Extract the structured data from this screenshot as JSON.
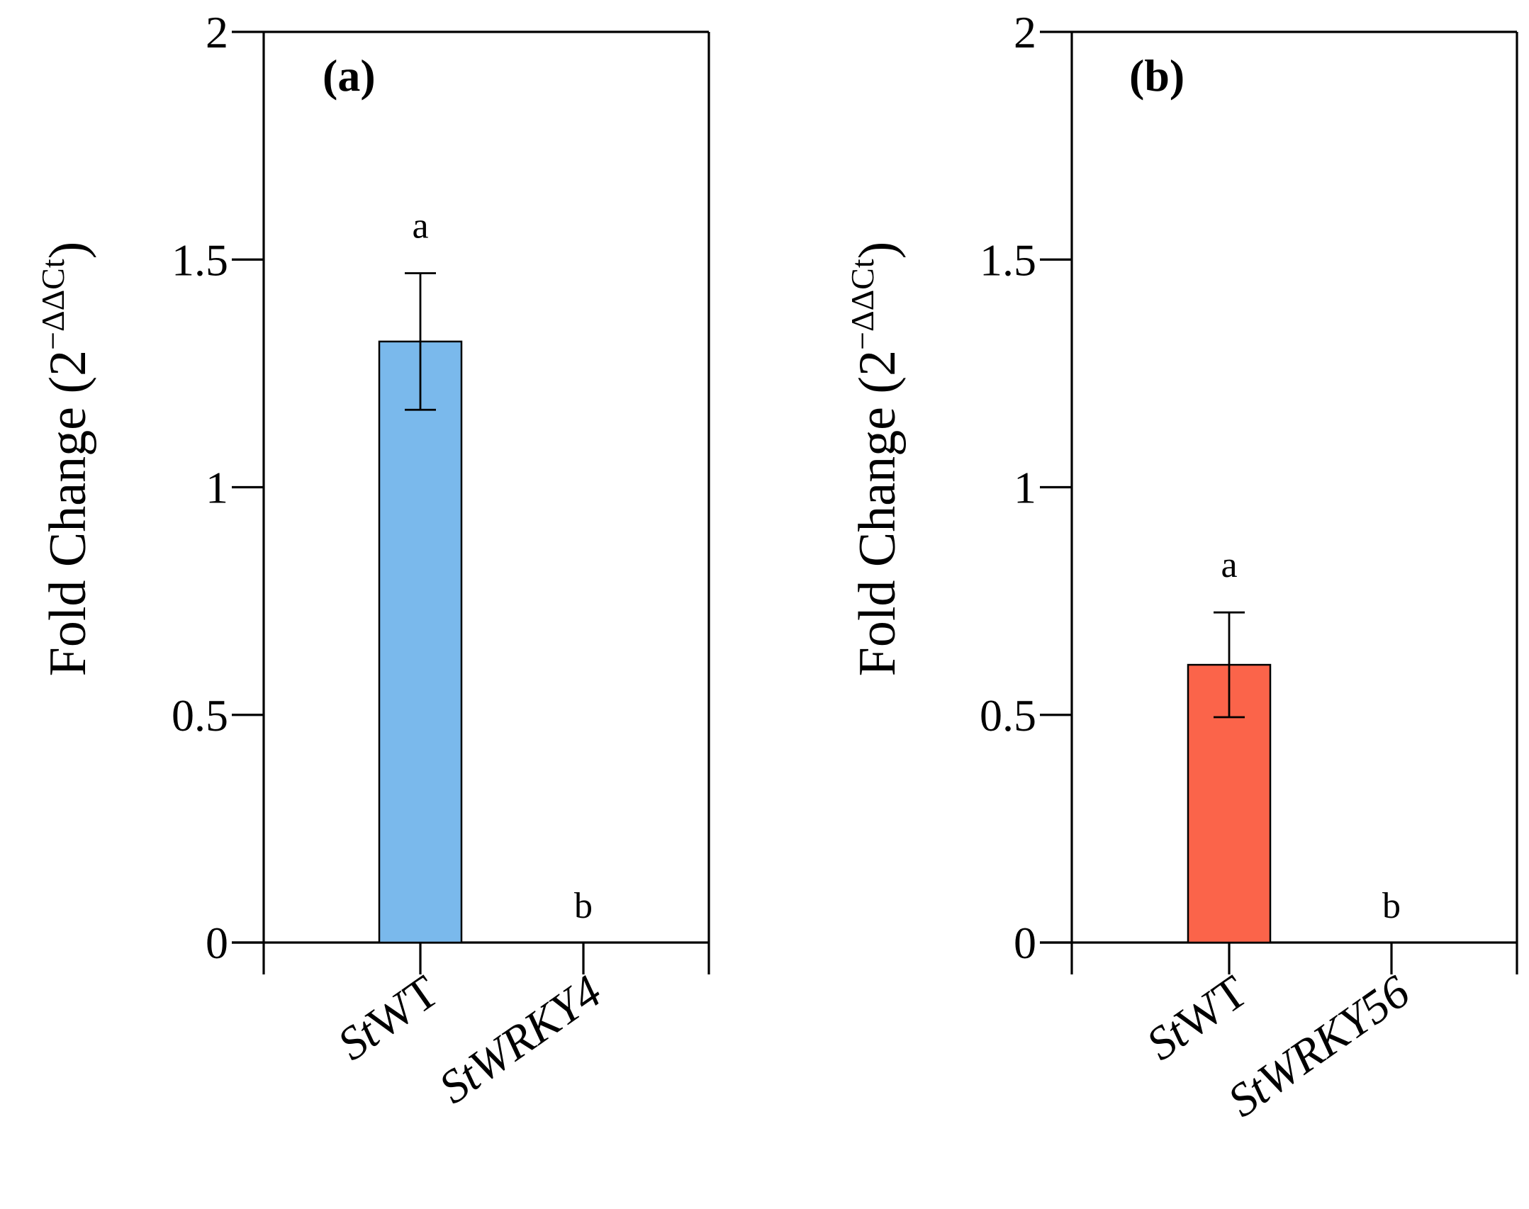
{
  "chart_data": [
    {
      "type": "bar",
      "panel_label": "(a)",
      "categories": [
        {
          "italic": "St",
          "plain": "WT"
        },
        {
          "italic": "StWRKY4",
          "plain": ""
        }
      ],
      "values": [
        1.32,
        0
      ],
      "errors": [
        0.15,
        null
      ],
      "significance": [
        "a",
        "b"
      ],
      "bar_color": "#7ab9ec",
      "ylabel": {
        "main": "Fold Change (2",
        "sup": "−ΔΔCt",
        "close": ")"
      },
      "ylim": [
        0,
        2
      ],
      "yticks": [
        {
          "v": 0,
          "label": "0"
        },
        {
          "v": 0.5,
          "label": "0.5"
        },
        {
          "v": 1,
          "label": "1"
        },
        {
          "v": 1.5,
          "label": "1.5"
        },
        {
          "v": 2,
          "label": "2"
        }
      ]
    },
    {
      "type": "bar",
      "panel_label": "(b)",
      "categories": [
        {
          "italic": "St",
          "plain": "WT"
        },
        {
          "italic": "StWRKY56",
          "plain": ""
        }
      ],
      "values": [
        0.61,
        0
      ],
      "errors": [
        0.115,
        null
      ],
      "significance": [
        "a",
        "b"
      ],
      "bar_color": "#fb644a",
      "ylabel": {
        "main": "Fold Change (2",
        "sup": "−ΔΔCt",
        "close": ")"
      },
      "ylim": [
        0,
        2
      ],
      "yticks": [
        {
          "v": 0,
          "label": "0"
        },
        {
          "v": 0.5,
          "label": "0.5"
        },
        {
          "v": 1,
          "label": "1"
        },
        {
          "v": 1.5,
          "label": "1.5"
        },
        {
          "v": 2,
          "label": "2"
        }
      ]
    }
  ]
}
